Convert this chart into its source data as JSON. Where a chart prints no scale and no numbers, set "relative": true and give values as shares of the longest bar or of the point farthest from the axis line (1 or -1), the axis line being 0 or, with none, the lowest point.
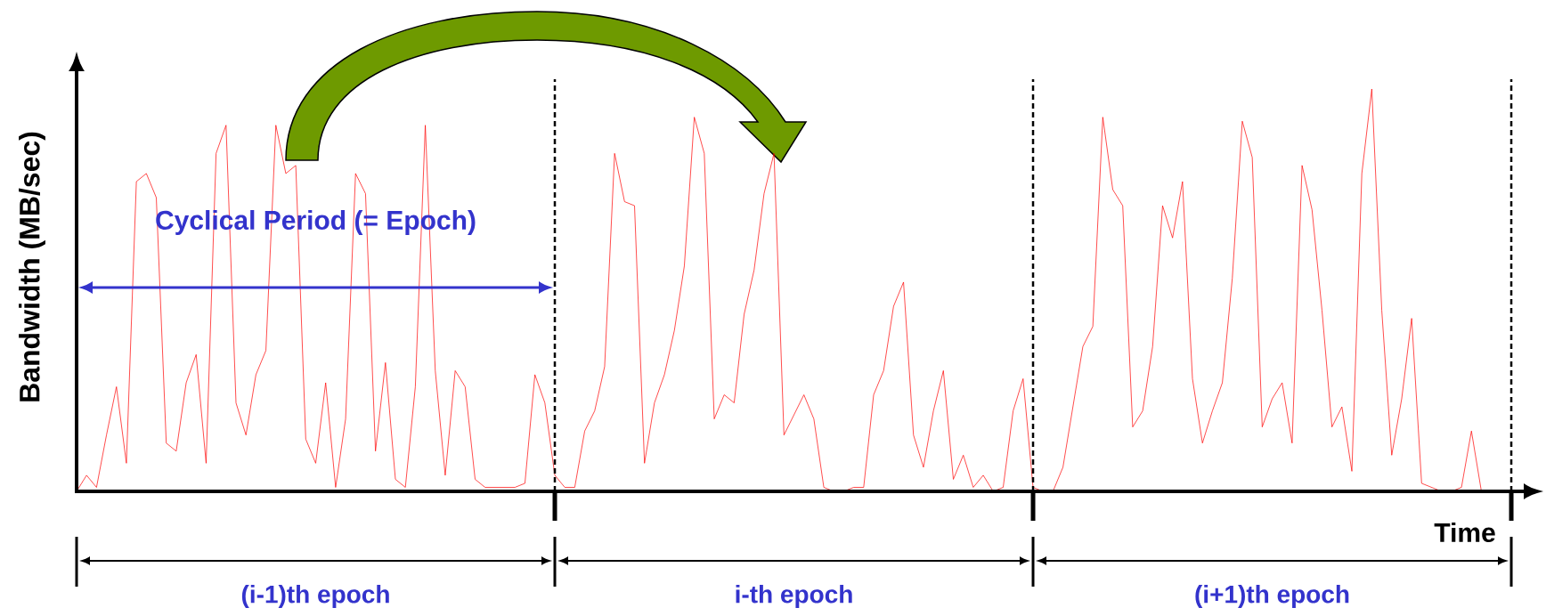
{
  "chart_data": {
    "type": "line",
    "relative": true,
    "xlabel": "Time",
    "ylabel": "Bandwidth (MB/sec)",
    "color": "#ff0000",
    "annotations": [
      "Cyclical Period (= Epoch)",
      "(i-1)th epoch",
      "i-th epoch",
      "(i+1)th epoch"
    ],
    "categories": [
      null,
      null,
      null,
      null,
      null,
      null,
      null,
      null,
      null,
      null,
      null,
      null,
      null,
      null,
      null,
      null,
      null,
      null,
      null,
      null,
      null,
      null,
      null,
      null,
      null,
      null,
      null,
      null,
      null,
      null,
      null,
      null,
      null,
      null,
      null,
      null,
      null,
      null,
      null,
      null,
      null,
      null,
      null,
      null,
      null,
      null,
      null,
      null,
      null,
      null,
      null,
      null,
      null,
      null,
      null,
      null,
      null,
      null,
      null,
      null,
      null,
      null,
      null,
      null,
      null,
      null,
      null,
      null,
      null,
      null,
      null,
      null,
      null,
      null,
      null,
      null,
      null,
      null,
      null,
      null,
      null,
      null,
      null,
      null,
      null,
      null,
      null,
      null,
      null,
      null,
      null,
      null,
      null,
      null,
      null,
      null,
      null,
      null,
      null,
      null,
      null,
      null,
      null,
      null,
      null,
      null,
      null,
      null,
      null,
      null,
      null,
      null,
      null,
      null,
      null,
      null,
      null,
      null,
      null,
      null,
      null,
      null,
      null,
      null,
      null,
      null,
      null,
      null,
      null,
      null,
      null,
      null,
      null,
      null,
      null,
      null,
      null,
      null,
      null,
      null,
      null,
      null,
      null,
      null,
      null
    ],
    "values": [
      0,
      0.04,
      0.01,
      0.14,
      0.26,
      0.07,
      0.77,
      0.79,
      0.73,
      0.12,
      0.1,
      0.27,
      0.34,
      0.07,
      0.84,
      0.91,
      0.22,
      0.14,
      0.29,
      0.35,
      0.91,
      0.79,
      0.81,
      0.13,
      0.07,
      0.27,
      0.01,
      0.18,
      0.79,
      0.74,
      0.1,
      0.32,
      0.03,
      0.01,
      0.26,
      0.91,
      0.3,
      0.04,
      0.3,
      0.26,
      0.03,
      0.01,
      0.01,
      0.01,
      0.01,
      0.02,
      0.29,
      0.22,
      0.04,
      0.01,
      0.01,
      0.15,
      0.2,
      0.31,
      0.84,
      0.72,
      0.71,
      0.07,
      0.22,
      0.29,
      0.4,
      0.56,
      0.93,
      0.84,
      0.18,
      0.24,
      0.22,
      0.44,
      0.55,
      0.74,
      0.84,
      0.14,
      0.19,
      0.24,
      0.18,
      0.01,
      0,
      0,
      0.01,
      0.01,
      0.24,
      0.3,
      0.46,
      0.52,
      0.14,
      0.06,
      0.2,
      0.3,
      0.03,
      0.09,
      0.01,
      0.04,
      0,
      0.01,
      0.2,
      0.28,
      0.01,
      0,
      0,
      0.06,
      0.21,
      0.36,
      0.41,
      0.93,
      0.75,
      0.71,
      0.16,
      0.2,
      0.36,
      0.71,
      0.63,
      0.77,
      0.28,
      0.12,
      0.2,
      0.27,
      0.53,
      0.92,
      0.83,
      0.16,
      0.23,
      0.27,
      0.12,
      0.81,
      0.7,
      0.45,
      0.16,
      0.21,
      0.05,
      0.79,
      1,
      0.45,
      0.09,
      0.23,
      0.43,
      0.02,
      0.01,
      0,
      0,
      0.01,
      0.15,
      0,
      0,
      null,
      null
    ]
  }
}
